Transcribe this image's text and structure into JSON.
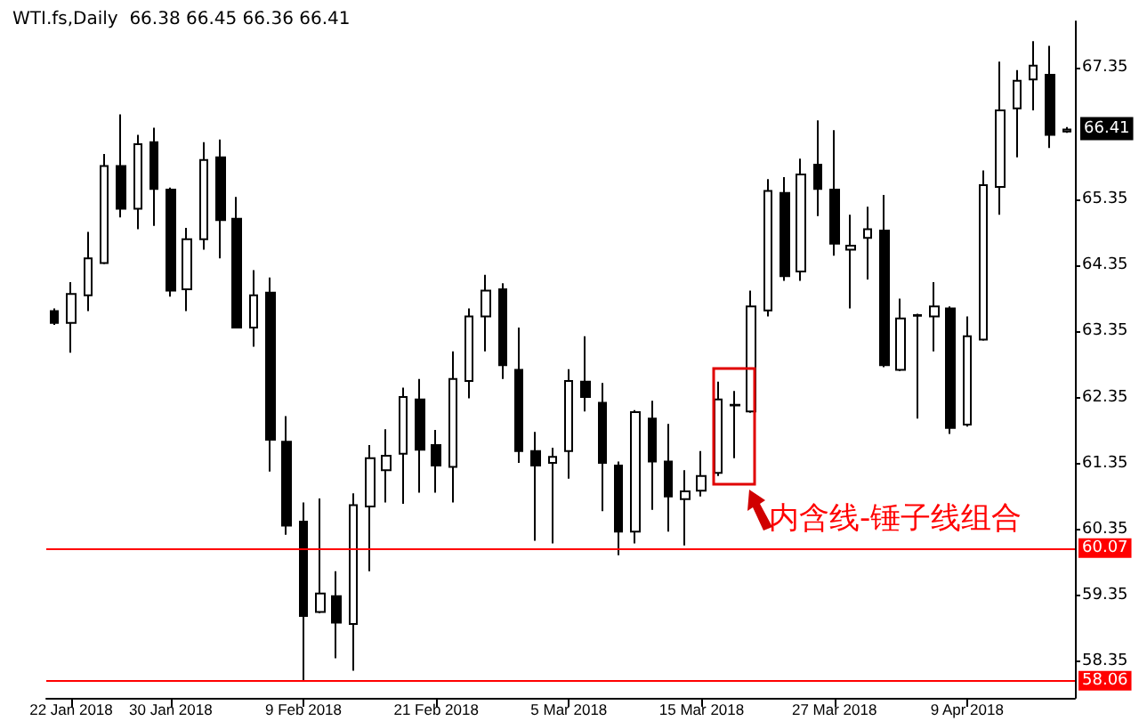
{
  "chart_data": {
    "type": "candlestick",
    "title": "WTI.fs,Daily  66.38 66.45 66.36 66.41",
    "categories": [
      null,
      "22 Jan 2018",
      null,
      null,
      null,
      null,
      null,
      "30 Jan 2018",
      null,
      null,
      null,
      null,
      null,
      null,
      null,
      "9 Feb 2018",
      null,
      null,
      null,
      null,
      null,
      null,
      null,
      "21 Feb 2018",
      null,
      null,
      null,
      null,
      null,
      null,
      null,
      "5 Mar 2018",
      null,
      null,
      null,
      null,
      null,
      null,
      null,
      "15 Mar 2018",
      null,
      null,
      null,
      null,
      null,
      null,
      null,
      "27 Mar 2018",
      null,
      null,
      null,
      null,
      null,
      null,
      null,
      "9 Apr 2018",
      null,
      null,
      null,
      null,
      null,
      null
    ],
    "ohlc": [
      [
        63.66,
        63.7,
        63.45,
        63.48
      ],
      [
        63.48,
        64.1,
        63.03,
        63.92
      ],
      [
        63.9,
        64.86,
        63.66,
        64.46
      ],
      [
        64.39,
        66.04,
        64.37,
        65.86
      ],
      [
        65.86,
        66.64,
        65.08,
        65.21
      ],
      [
        65.21,
        66.33,
        64.9,
        66.19
      ],
      [
        66.22,
        66.44,
        64.95,
        65.51
      ],
      [
        65.5,
        65.53,
        63.88,
        63.97
      ],
      [
        63.99,
        64.92,
        63.66,
        64.75
      ],
      [
        64.75,
        66.22,
        64.59,
        65.95
      ],
      [
        65.99,
        66.26,
        64.46,
        65.04
      ],
      [
        65.06,
        65.39,
        63.4,
        63.41
      ],
      [
        63.41,
        64.28,
        63.12,
        63.9
      ],
      [
        63.94,
        64.17,
        61.23,
        61.71
      ],
      [
        61.68,
        62.07,
        60.27,
        60.41
      ],
      [
        60.47,
        60.76,
        58.06,
        59.04
      ],
      [
        59.1,
        60.82,
        59.08,
        59.38
      ],
      [
        59.34,
        59.72,
        58.4,
        58.94
      ],
      [
        58.92,
        60.9,
        58.21,
        60.72
      ],
      [
        60.7,
        61.63,
        59.72,
        61.43
      ],
      [
        61.25,
        61.87,
        60.76,
        61.47
      ],
      [
        61.5,
        62.5,
        60.74,
        62.36
      ],
      [
        62.32,
        62.63,
        60.91,
        61.56
      ],
      [
        61.63,
        61.86,
        60.91,
        61.32
      ],
      [
        61.3,
        63.05,
        60.76,
        62.63
      ],
      [
        62.6,
        63.7,
        62.34,
        63.58
      ],
      [
        63.58,
        64.21,
        63.05,
        63.97
      ],
      [
        63.99,
        64.08,
        62.63,
        62.84
      ],
      [
        62.77,
        63.41,
        61.36,
        61.54
      ],
      [
        61.54,
        61.83,
        60.18,
        61.32
      ],
      [
        61.36,
        61.59,
        60.14,
        61.45
      ],
      [
        61.54,
        62.78,
        61.12,
        62.6
      ],
      [
        62.59,
        63.28,
        62.14,
        62.36
      ],
      [
        62.27,
        62.57,
        60.63,
        61.36
      ],
      [
        61.32,
        61.38,
        59.96,
        60.32
      ],
      [
        60.32,
        62.16,
        60.14,
        62.13
      ],
      [
        62.03,
        62.3,
        60.65,
        61.38
      ],
      [
        61.38,
        61.95,
        60.32,
        60.85
      ],
      [
        60.81,
        61.25,
        60.11,
        60.93
      ],
      [
        60.94,
        61.54,
        60.85,
        61.16
      ],
      [
        61.21,
        62.59,
        61.16,
        62.32
      ],
      [
        62.23,
        62.45,
        61.43,
        62.24
      ],
      [
        62.14,
        63.97,
        62.12,
        63.73
      ],
      [
        63.67,
        65.66,
        63.58,
        65.48
      ],
      [
        65.45,
        65.69,
        64.12,
        64.19
      ],
      [
        64.26,
        65.97,
        64.12,
        65.73
      ],
      [
        65.88,
        66.55,
        65.1,
        65.51
      ],
      [
        65.5,
        66.4,
        64.5,
        64.68
      ],
      [
        64.59,
        65.12,
        63.7,
        64.65
      ],
      [
        64.77,
        65.24,
        64.14,
        64.9
      ],
      [
        64.88,
        65.42,
        62.81,
        62.84
      ],
      [
        62.77,
        63.85,
        62.75,
        63.55
      ],
      [
        63.59,
        63.62,
        62.03,
        63.6
      ],
      [
        63.58,
        64.1,
        63.05,
        63.73
      ],
      [
        63.7,
        63.73,
        61.8,
        61.89
      ],
      [
        61.94,
        63.58,
        61.91,
        63.28
      ],
      [
        63.23,
        65.79,
        63.21,
        65.57
      ],
      [
        65.54,
        67.44,
        65.12,
        66.7
      ],
      [
        66.73,
        67.31,
        65.99,
        67.15
      ],
      [
        67.17,
        67.75,
        66.7,
        67.38
      ],
      [
        67.24,
        67.68,
        66.13,
        66.33
      ],
      [
        66.38,
        66.45,
        66.36,
        66.41
      ]
    ],
    "ylim": [
      57.8,
      68.05
    ],
    "yticks": [
      58.35,
      59.35,
      60.35,
      61.35,
      62.35,
      63.35,
      64.35,
      65.35,
      67.35
    ],
    "ref_lines": [
      {
        "axis": "y",
        "value": 60.07,
        "label": "60.07",
        "color": "#ff0000"
      },
      {
        "axis": "y",
        "value": 58.06,
        "label": "58.06",
        "color": "#ff0000"
      }
    ],
    "annotations": [
      "内含线-锤子线组合",
      "66.41"
    ],
    "grid": false
  }
}
